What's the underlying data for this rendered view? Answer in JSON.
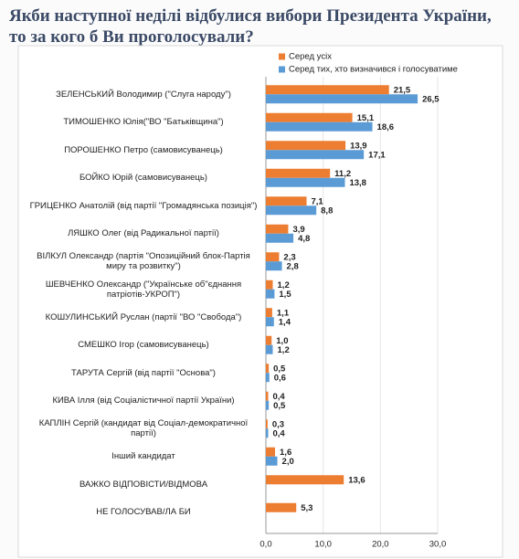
{
  "chart_data": {
    "type": "bar",
    "orientation": "horizontal",
    "title": "Якби наступної неділі відбулися вибори Президента України, то за кого б Ви проголосували?",
    "categories": [
      "ЗЕЛЕНСЬКИЙ Володимир (\"Слуга народу\")",
      "ТИМОШЕНКО Юлія(\"ВО \"Батьківщина\")",
      "ПОРОШЕНКО Петро (самовисуванець)",
      "БОЙКО Юрій (самовисуванець)",
      "ГРИЦЕНКО Анатолій (від партії \"Громадянська позиція\")",
      "ЛЯШКО Олег (від Радикальної партії)",
      "ВІЛКУЛ Олександр (партія \"Опозиційний блок-Партія миру та розвитку\")",
      "ШЕВЧЕНКО Олександр (\"Українське об\"єднання патріотів-УКРОП\")",
      "КОШУЛИНСЬКИЙ Руслан (партії \"ВО \"Свобода\")",
      "СМЕШКО Ігор (самовисуванець)",
      "ТАРУТА Сергій (від партії \"Основа\")",
      "КИВА Ілля (від Соціалістичної партії України)",
      "КАПЛІН Сергій (кандидат від Соціал-демократичної партії)",
      "Інший кандидат",
      "ВАЖКО ВІДПОВІСТИ/ВІДМОВА",
      "НЕ ГОЛОСУВАВ/ЛА БИ"
    ],
    "series": [
      {
        "name": "Серед усіх",
        "color": "#ed7d31",
        "values": [
          21.5,
          15.1,
          13.9,
          11.2,
          7.1,
          3.9,
          2.3,
          1.2,
          1.1,
          1.0,
          0.5,
          0.4,
          0.3,
          1.6,
          13.6,
          5.3
        ],
        "value_labels": [
          "21,5",
          "15,1",
          "13,9",
          "11,2",
          "7,1",
          "3,9",
          "2,3",
          "1,2",
          "1,1",
          "1,0",
          "0,5",
          "0,4",
          "0,3",
          "1,6",
          "13,6",
          "5,3"
        ]
      },
      {
        "name": "Серед тих, хто визначився і голосуватиме",
        "color": "#5b9bd5",
        "values": [
          26.5,
          18.6,
          17.1,
          13.8,
          8.8,
          4.8,
          2.8,
          1.5,
          1.4,
          1.2,
          0.6,
          0.5,
          0.4,
          2.0,
          null,
          null
        ],
        "value_labels": [
          "26,5",
          "18,6",
          "17,1",
          "13,8",
          "8,8",
          "4,8",
          "2,8",
          "1,5",
          "1,4",
          "1,2",
          "0,6",
          "0,5",
          "0,4",
          "2,0",
          null,
          null
        ]
      }
    ],
    "xlim": [
      0,
      30
    ],
    "xticks": [
      {
        "value": 0,
        "label": "0,0"
      },
      {
        "value": 10,
        "label": "10,0"
      },
      {
        "value": 20,
        "label": "20,0"
      },
      {
        "value": 30,
        "label": "30,0"
      }
    ],
    "grid": true
  }
}
